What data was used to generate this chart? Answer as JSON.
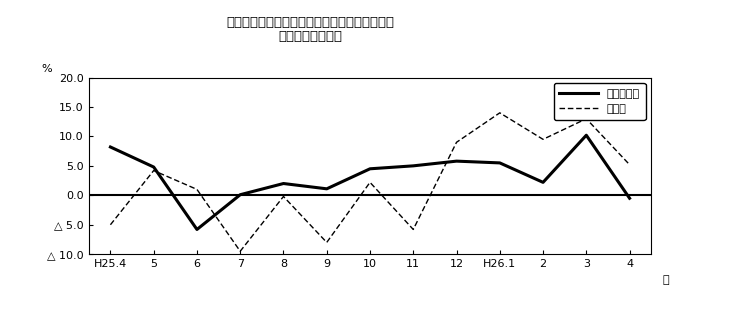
{
  "title_line1": "第２図　所定外労働時間　対前年同月比の推移",
  "title_line2": "（規樯５人以上）",
  "xlabel": "月",
  "ylabel": "%",
  "x_labels": [
    "H25.4",
    "5",
    "6",
    "7",
    "8",
    "9",
    "10",
    "11",
    "12",
    "H26.1",
    "2",
    "3",
    "4"
  ],
  "solid_label": "調査産業計",
  "dashed_label": "製造業",
  "solid_values": [
    8.2,
    4.8,
    -5.8,
    0.1,
    2.0,
    1.1,
    4.5,
    5.0,
    5.8,
    5.5,
    2.2,
    10.2,
    -0.5
  ],
  "dashed_values": [
    -5.0,
    4.2,
    1.0,
    -9.5,
    -0.2,
    -8.0,
    2.2,
    -5.8,
    9.0,
    14.0,
    9.5,
    13.0,
    5.2
  ],
  "ylim": [
    -10.0,
    20.0
  ],
  "yticks": [
    -10.0,
    -5.0,
    0.0,
    5.0,
    10.0,
    15.0,
    20.0
  ],
  "ytick_labels": [
    "△ 10.0",
    "△ 5.0",
    "0.0",
    "5.0",
    "10.0",
    "15.0",
    "20.0"
  ],
  "zero_line_color": "#000000",
  "solid_color": "#000000",
  "dashed_color": "#000000",
  "bg_color": "#ffffff",
  "border_color": "#000000"
}
